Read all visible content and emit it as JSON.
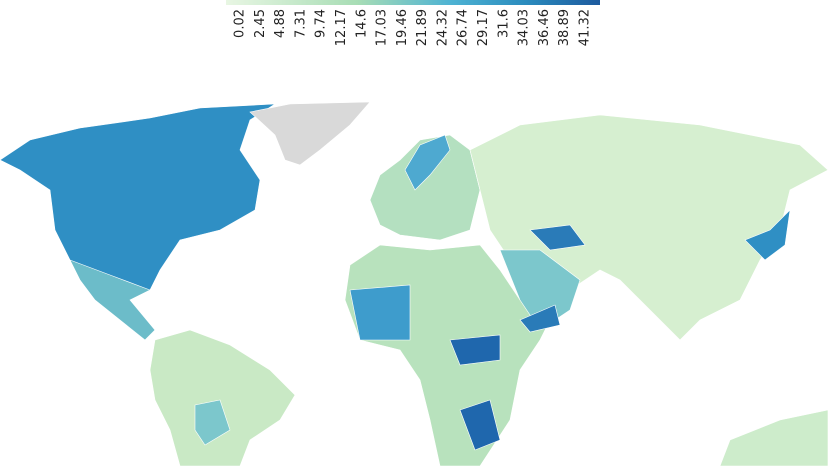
{
  "legend": {
    "ticks": [
      0.02,
      2.45,
      4.88,
      7.31,
      9.74,
      12.17,
      14.6,
      17.03,
      19.46,
      21.89,
      24.32,
      26.74,
      29.17,
      31.6,
      34.03,
      36.46,
      38.89,
      41.32
    ]
  }
}
